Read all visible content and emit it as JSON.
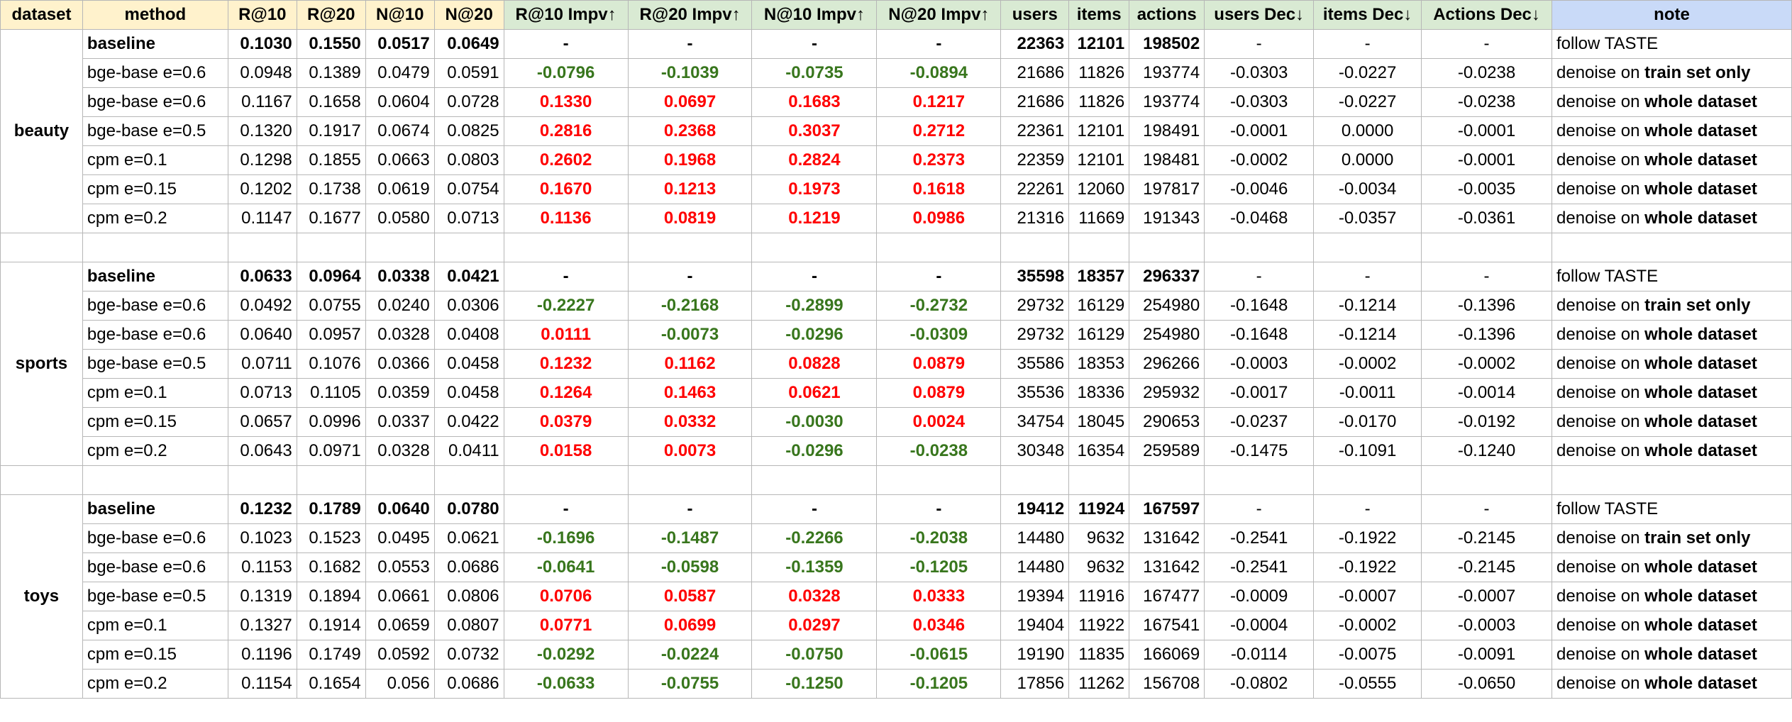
{
  "headers": [
    "dataset",
    "method",
    "R@10",
    "R@20",
    "N@10",
    "N@20",
    "R@10 Impv↑",
    "R@20 Impv↑",
    "N@10 Impv↑",
    "N@20 Impv↑",
    "users",
    "items",
    "actions",
    "users Dec↓",
    "items Dec↓",
    "Actions Dec↓",
    "note"
  ],
  "groups": [
    {
      "dataset": "beauty",
      "rows": [
        {
          "method": "baseline",
          "r10": "0.1030",
          "r20": "0.1550",
          "n10": "0.0517",
          "n20": "0.0649",
          "i1": "-",
          "i2": "-",
          "i3": "-",
          "i4": "-",
          "users": "22363",
          "items": "12101",
          "actions": "198502",
          "d1": "-",
          "d2": "-",
          "d3": "-",
          "note": "follow TASTE"
        },
        {
          "method": "bge-base e=0.6",
          "r10": "0.0948",
          "r20": "0.1389",
          "n10": "0.0479",
          "n20": "0.0591",
          "i1": "-0.0796",
          "i2": "-0.1039",
          "i3": "-0.0735",
          "i4": "-0.0894",
          "users": "21686",
          "items": "11826",
          "actions": "193774",
          "d1": "-0.0303",
          "d2": "-0.0227",
          "d3": "-0.0238",
          "note_pre": "denoise on ",
          "note_bold": "train set only"
        },
        {
          "method": "bge-base e=0.6",
          "r10": "0.1167",
          "r20": "0.1658",
          "n10": "0.0604",
          "n20": "0.0728",
          "i1": "0.1330",
          "i2": "0.0697",
          "i3": "0.1683",
          "i4": "0.1217",
          "users": "21686",
          "items": "11826",
          "actions": "193774",
          "d1": "-0.0303",
          "d2": "-0.0227",
          "d3": "-0.0238",
          "note_pre": "denoise on ",
          "note_bold": "whole dataset"
        },
        {
          "method": "bge-base e=0.5",
          "r10": "0.1320",
          "r20": "0.1917",
          "n10": "0.0674",
          "n20": "0.0825",
          "i1": "0.2816",
          "i2": "0.2368",
          "i3": "0.3037",
          "i4": "0.2712",
          "users": "22361",
          "items": "12101",
          "actions": "198491",
          "d1": "-0.0001",
          "d2": "0.0000",
          "d3": "-0.0001",
          "note_pre": "denoise on ",
          "note_bold": "whole dataset"
        },
        {
          "method": "cpm e=0.1",
          "r10": "0.1298",
          "r20": "0.1855",
          "n10": "0.0663",
          "n20": "0.0803",
          "i1": "0.2602",
          "i2": "0.1968",
          "i3": "0.2824",
          "i4": "0.2373",
          "users": "22359",
          "items": "12101",
          "actions": "198481",
          "d1": "-0.0002",
          "d2": "0.0000",
          "d3": "-0.0001",
          "note_pre": "denoise on ",
          "note_bold": "whole dataset"
        },
        {
          "method": "cpm e=0.15",
          "r10": "0.1202",
          "r20": "0.1738",
          "n10": "0.0619",
          "n20": "0.0754",
          "i1": "0.1670",
          "i2": "0.1213",
          "i3": "0.1973",
          "i4": "0.1618",
          "users": "22261",
          "items": "12060",
          "actions": "197817",
          "d1": "-0.0046",
          "d2": "-0.0034",
          "d3": "-0.0035",
          "note_pre": "denoise on ",
          "note_bold": "whole dataset"
        },
        {
          "method": "cpm e=0.2",
          "r10": "0.1147",
          "r20": "0.1677",
          "n10": "0.0580",
          "n20": "0.0713",
          "i1": "0.1136",
          "i2": "0.0819",
          "i3": "0.1219",
          "i4": "0.0986",
          "users": "21316",
          "items": "11669",
          "actions": "191343",
          "d1": "-0.0468",
          "d2": "-0.0357",
          "d3": "-0.0361",
          "note_pre": "denoise on ",
          "note_bold": "whole dataset"
        }
      ]
    },
    {
      "dataset": "sports",
      "rows": [
        {
          "method": "baseline",
          "r10": "0.0633",
          "r20": "0.0964",
          "n10": "0.0338",
          "n20": "0.0421",
          "i1": "-",
          "i2": "-",
          "i3": "-",
          "i4": "-",
          "users": "35598",
          "items": "18357",
          "actions": "296337",
          "d1": "-",
          "d2": "-",
          "d3": "-",
          "note": "follow TASTE"
        },
        {
          "method": "bge-base e=0.6",
          "r10": "0.0492",
          "r20": "0.0755",
          "n10": "0.0240",
          "n20": "0.0306",
          "i1": "-0.2227",
          "i2": "-0.2168",
          "i3": "-0.2899",
          "i4": "-0.2732",
          "users": "29732",
          "items": "16129",
          "actions": "254980",
          "d1": "-0.1648",
          "d2": "-0.1214",
          "d3": "-0.1396",
          "note_pre": "denoise on ",
          "note_bold": "train set only"
        },
        {
          "method": "bge-base e=0.6",
          "r10": "0.0640",
          "r20": "0.0957",
          "n10": "0.0328",
          "n20": "0.0408",
          "i1": "0.0111",
          "i2": "-0.0073",
          "i3": "-0.0296",
          "i4": "-0.0309",
          "users": "29732",
          "items": "16129",
          "actions": "254980",
          "d1": "-0.1648",
          "d2": "-0.1214",
          "d3": "-0.1396",
          "note_pre": "denoise on ",
          "note_bold": "whole dataset"
        },
        {
          "method": "bge-base e=0.5",
          "r10": "0.0711",
          "r20": "0.1076",
          "n10": "0.0366",
          "n20": "0.0458",
          "i1": "0.1232",
          "i2": "0.1162",
          "i3": "0.0828",
          "i4": "0.0879",
          "users": "35586",
          "items": "18353",
          "actions": "296266",
          "d1": "-0.0003",
          "d2": "-0.0002",
          "d3": "-0.0002",
          "note_pre": "denoise on ",
          "note_bold": "whole dataset"
        },
        {
          "method": "cpm e=0.1",
          "r10": "0.0713",
          "r20": "0.1105",
          "n10": "0.0359",
          "n20": "0.0458",
          "i1": "0.1264",
          "i2": "0.1463",
          "i3": "0.0621",
          "i4": "0.0879",
          "users": "35536",
          "items": "18336",
          "actions": "295932",
          "d1": "-0.0017",
          "d2": "-0.0011",
          "d3": "-0.0014",
          "note_pre": "denoise on ",
          "note_bold": "whole dataset"
        },
        {
          "method": "cpm e=0.15",
          "r10": "0.0657",
          "r20": "0.0996",
          "n10": "0.0337",
          "n20": "0.0422",
          "i1": "0.0379",
          "i2": "0.0332",
          "i3": "-0.0030",
          "i4": "0.0024",
          "users": "34754",
          "items": "18045",
          "actions": "290653",
          "d1": "-0.0237",
          "d2": "-0.0170",
          "d3": "-0.0192",
          "note_pre": "denoise on ",
          "note_bold": "whole dataset"
        },
        {
          "method": "cpm e=0.2",
          "r10": "0.0643",
          "r20": "0.0971",
          "n10": "0.0328",
          "n20": "0.0411",
          "i1": "0.0158",
          "i2": "0.0073",
          "i3": "-0.0296",
          "i4": "-0.0238",
          "users": "30348",
          "items": "16354",
          "actions": "259589",
          "d1": "-0.1475",
          "d2": "-0.1091",
          "d3": "-0.1240",
          "note_pre": "denoise on ",
          "note_bold": "whole dataset"
        }
      ]
    },
    {
      "dataset": "toys",
      "rows": [
        {
          "method": "baseline",
          "r10": "0.1232",
          "r20": "0.1789",
          "n10": "0.0640",
          "n20": "0.0780",
          "i1": "-",
          "i2": "-",
          "i3": "-",
          "i4": "-",
          "users": "19412",
          "items": "11924",
          "actions": "167597",
          "d1": "-",
          "d2": "-",
          "d3": "-",
          "note": "follow TASTE"
        },
        {
          "method": "bge-base e=0.6",
          "r10": "0.1023",
          "r20": "0.1523",
          "n10": "0.0495",
          "n20": "0.0621",
          "i1": "-0.1696",
          "i2": "-0.1487",
          "i3": "-0.2266",
          "i4": "-0.2038",
          "users": "14480",
          "items": "9632",
          "actions": "131642",
          "d1": "-0.2541",
          "d2": "-0.1922",
          "d3": "-0.2145",
          "note_pre": "denoise on ",
          "note_bold": "train set only"
        },
        {
          "method": "bge-base e=0.6",
          "r10": "0.1153",
          "r20": "0.1682",
          "n10": "0.0553",
          "n20": "0.0686",
          "i1": "-0.0641",
          "i2": "-0.0598",
          "i3": "-0.1359",
          "i4": "-0.1205",
          "users": "14480",
          "items": "9632",
          "actions": "131642",
          "d1": "-0.2541",
          "d2": "-0.1922",
          "d3": "-0.2145",
          "note_pre": "denoise on ",
          "note_bold": "whole dataset"
        },
        {
          "method": "bge-base e=0.5",
          "r10": "0.1319",
          "r20": "0.1894",
          "n10": "0.0661",
          "n20": "0.0806",
          "i1": "0.0706",
          "i2": "0.0587",
          "i3": "0.0328",
          "i4": "0.0333",
          "users": "19394",
          "items": "11916",
          "actions": "167477",
          "d1": "-0.0009",
          "d2": "-0.0007",
          "d3": "-0.0007",
          "note_pre": "denoise on ",
          "note_bold": "whole dataset"
        },
        {
          "method": "cpm e=0.1",
          "r10": "0.1327",
          "r20": "0.1914",
          "n10": "0.0659",
          "n20": "0.0807",
          "i1": "0.0771",
          "i2": "0.0699",
          "i3": "0.0297",
          "i4": "0.0346",
          "users": "19404",
          "items": "11922",
          "actions": "167541",
          "d1": "-0.0004",
          "d2": "-0.0002",
          "d3": "-0.0003",
          "note_pre": "denoise on ",
          "note_bold": "whole dataset"
        },
        {
          "method": "cpm e=0.15",
          "r10": "0.1196",
          "r20": "0.1749",
          "n10": "0.0592",
          "n20": "0.0732",
          "i1": "-0.0292",
          "i2": "-0.0224",
          "i3": "-0.0750",
          "i4": "-0.0615",
          "users": "19190",
          "items": "11835",
          "actions": "166069",
          "d1": "-0.0114",
          "d2": "-0.0075",
          "d3": "-0.0091",
          "note_pre": "denoise on ",
          "note_bold": "whole dataset"
        },
        {
          "method": "cpm e=0.2",
          "r10": "0.1154",
          "r20": "0.1654",
          "n10": "0.056",
          "n20": "0.0686",
          "i1": "-0.0633",
          "i2": "-0.0755",
          "i3": "-0.1250",
          "i4": "-0.1205",
          "users": "17856",
          "items": "11262",
          "actions": "156708",
          "d1": "-0.0802",
          "d2": "-0.0555",
          "d3": "-0.0650",
          "note_pre": "denoise on ",
          "note_bold": "whole dataset"
        }
      ]
    }
  ]
}
